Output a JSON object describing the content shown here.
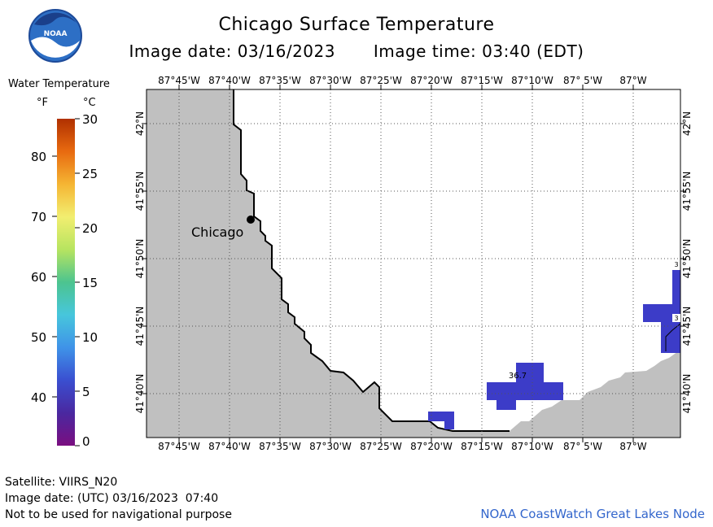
{
  "header": {
    "title": "Chicago Surface Temperature",
    "image_date": "Image date: 03/16/2023",
    "image_time": "Image time: 03:40 (EDT)"
  },
  "logo": {
    "text": "NOAA",
    "icon": "noaa-logo"
  },
  "legend": {
    "title": "Water Temperature",
    "unit_f": "°F",
    "unit_c": "°C",
    "f_ticks": [
      "80",
      "70",
      "60",
      "50",
      "40"
    ],
    "c_ticks": [
      "30",
      "25",
      "20",
      "15",
      "10",
      "5",
      "0"
    ],
    "colors": [
      "#b03000",
      "#e86a10",
      "#f5b533",
      "#f2ee70",
      "#b7e460",
      "#4cc48f",
      "#47c6dc",
      "#3f93e8",
      "#3a4fd0",
      "#4a28a0",
      "#7a0e80"
    ]
  },
  "map": {
    "lon_labels": [
      "87°45'W",
      "87°40'W",
      "87°35'W",
      "87°30'W",
      "87°25'W",
      "87°20'W",
      "87°15'W",
      "87°10'W",
      "87° 5'W",
      "87°W"
    ],
    "lat_labels": [
      "42°N",
      "41°55'N",
      "41°50'N",
      "41°45'N",
      "41°40'N"
    ],
    "city": "Chicago",
    "temp_label": "36.7",
    "edge_labels": [
      "3",
      "3"
    ],
    "land_color": "#c0c0c0",
    "water_color": "#ffffff",
    "temp_color": "#3c3cc8"
  },
  "footer": {
    "satellite": "Satellite: VIIRS_N20",
    "utc_date": "Image date: (UTC) 03/16/2023  07:40",
    "disclaimer": "Not to be used for navigational purpose",
    "source": "NOAA CoastWatch Great Lakes Node"
  }
}
